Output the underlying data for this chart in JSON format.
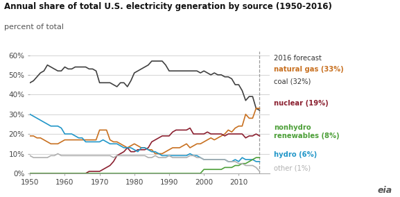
{
  "title": "Annual share of total U.S. electricity generation by source (1950-2016)",
  "subtitle": "percent of total",
  "forecast_year": 2016,
  "colors": {
    "coal": "#404040",
    "natural_gas": "#c87020",
    "nuclear": "#8b2030",
    "hydro": "#2196c8",
    "nonhydro_renewables": "#4c9f38",
    "other": "#b0b0b0"
  },
  "years": [
    1950,
    1951,
    1952,
    1953,
    1954,
    1955,
    1956,
    1957,
    1958,
    1959,
    1960,
    1961,
    1962,
    1963,
    1964,
    1965,
    1966,
    1967,
    1968,
    1969,
    1970,
    1971,
    1972,
    1973,
    1974,
    1975,
    1976,
    1977,
    1978,
    1979,
    1980,
    1981,
    1982,
    1983,
    1984,
    1985,
    1986,
    1987,
    1988,
    1989,
    1990,
    1991,
    1992,
    1993,
    1994,
    1995,
    1996,
    1997,
    1998,
    1999,
    2000,
    2001,
    2002,
    2003,
    2004,
    2005,
    2006,
    2007,
    2008,
    2009,
    2010,
    2011,
    2012,
    2013,
    2014,
    2015,
    2016
  ],
  "coal": [
    46,
    47,
    49,
    51,
    52,
    55,
    54,
    53,
    52,
    52,
    54,
    53,
    53,
    54,
    54,
    54,
    54,
    53,
    53,
    52,
    46,
    46,
    46,
    46,
    45,
    44,
    46,
    46,
    44,
    47,
    51,
    52,
    53,
    54,
    55,
    57,
    57,
    57,
    57,
    55,
    52,
    52,
    52,
    52,
    52,
    52,
    52,
    52,
    52,
    51,
    52,
    51,
    50,
    51,
    50,
    50,
    49,
    49,
    48,
    45,
    45,
    42,
    37,
    39,
    39,
    33,
    32
  ],
  "natural_gas": [
    19,
    19,
    18,
    18,
    17,
    16,
    15,
    15,
    15,
    16,
    17,
    17,
    17,
    17,
    17,
    17,
    17,
    17,
    17,
    17,
    22,
    22,
    22,
    17,
    16,
    16,
    15,
    14,
    13,
    14,
    15,
    14,
    13,
    13,
    12,
    12,
    10,
    10,
    10,
    11,
    12,
    13,
    13,
    13,
    14,
    15,
    13,
    14,
    15,
    15,
    16,
    17,
    18,
    17,
    18,
    19,
    20,
    22,
    21,
    23,
    24,
    24,
    30,
    28,
    28,
    33,
    33
  ],
  "nuclear": [
    0,
    0,
    0,
    0,
    0,
    0,
    0,
    0,
    0,
    0,
    0,
    0,
    0,
    0,
    0,
    0,
    0,
    1,
    1,
    1,
    1,
    2,
    3,
    4,
    6,
    9,
    10,
    11,
    13,
    11,
    11,
    12,
    12,
    12,
    13,
    16,
    17,
    18,
    19,
    19,
    19,
    21,
    22,
    22,
    22,
    22,
    23,
    20,
    20,
    20,
    20,
    21,
    20,
    20,
    20,
    20,
    19,
    20,
    20,
    20,
    20,
    20,
    18,
    19,
    19,
    20,
    19
  ],
  "hydro": [
    30,
    29,
    28,
    27,
    26,
    25,
    24,
    24,
    24,
    23,
    20,
    20,
    20,
    19,
    18,
    18,
    16,
    16,
    16,
    16,
    16,
    17,
    16,
    15,
    15,
    15,
    14,
    13,
    13,
    13,
    12,
    11,
    13,
    13,
    12,
    11,
    11,
    10,
    9,
    9,
    9,
    9,
    9,
    9,
    9,
    9,
    10,
    9,
    9,
    8,
    7,
    7,
    7,
    7,
    7,
    7,
    7,
    6,
    6,
    7,
    6,
    8,
    7,
    7,
    7,
    6,
    6
  ],
  "nonhydro_renewables": [
    0,
    0,
    0,
    0,
    0,
    0,
    0,
    0,
    0,
    0,
    0,
    0,
    0,
    0,
    0,
    0,
    0,
    0,
    0,
    0,
    0,
    0,
    0,
    0,
    0,
    0,
    0,
    0,
    0,
    0,
    0,
    0,
    0,
    0,
    0,
    0,
    0,
    0,
    0,
    0,
    0,
    0,
    0,
    0,
    0,
    0,
    0,
    0,
    0,
    0,
    2,
    2,
    2,
    2,
    2,
    2,
    3,
    3,
    3,
    4,
    4,
    5,
    5,
    6,
    7,
    8,
    8
  ],
  "other": [
    9,
    8,
    8,
    8,
    8,
    8,
    9,
    9,
    10,
    9,
    9,
    9,
    9,
    9,
    9,
    9,
    9,
    9,
    9,
    9,
    9,
    9,
    9,
    9,
    8,
    9,
    9,
    9,
    9,
    9,
    9,
    9,
    9,
    9,
    8,
    8,
    9,
    8,
    8,
    8,
    9,
    8,
    8,
    8,
    8,
    8,
    9,
    9,
    8,
    8,
    7,
    7,
    7,
    7,
    7,
    7,
    7,
    6,
    6,
    6,
    5,
    5,
    4,
    4,
    4,
    3,
    1
  ],
  "xlim": [
    1950,
    2019
  ],
  "ylim": [
    0,
    62
  ],
  "yticks": [
    0,
    10,
    20,
    30,
    40,
    50,
    60
  ],
  "xticks": [
    1950,
    1960,
    1970,
    1980,
    1990,
    2000,
    2010
  ],
  "title_fontsize": 8.5,
  "subtitle_fontsize": 8,
  "tick_fontsize": 7.5,
  "legend": {
    "forecast_color": "#333333",
    "natural_gas_bold": true,
    "nuclear_bold": true,
    "nonhydro_bold": true,
    "hydro_bold": true
  }
}
